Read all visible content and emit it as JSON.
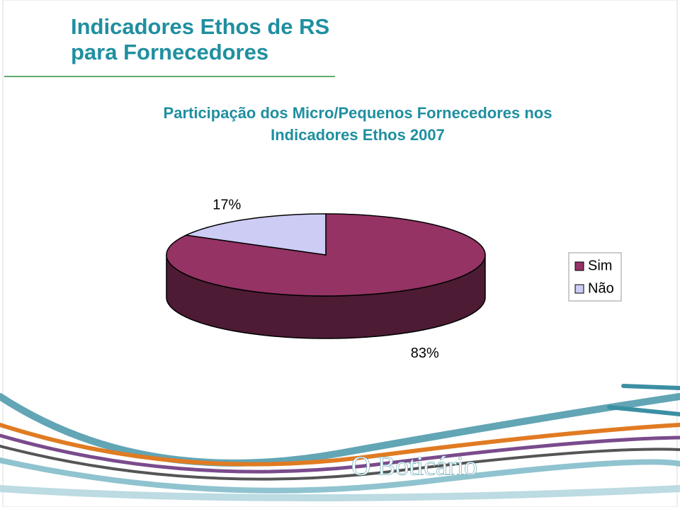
{
  "slide": {
    "title": [
      "Indicadores Ethos de RS",
      "para Fornecedores"
    ],
    "logo": "O Boticário"
  },
  "chart_data": {
    "type": "pie3d",
    "title": [
      "Participação dos Micro/Pequenos Fornecedores nos",
      "Indicadores Ethos 2007"
    ],
    "categories": [
      "Sim",
      "Não"
    ],
    "values": [
      83,
      17
    ],
    "value_labels": [
      "83%",
      "17%"
    ],
    "colors": [
      "#943364",
      "#ccccf5"
    ],
    "legend": "right"
  }
}
